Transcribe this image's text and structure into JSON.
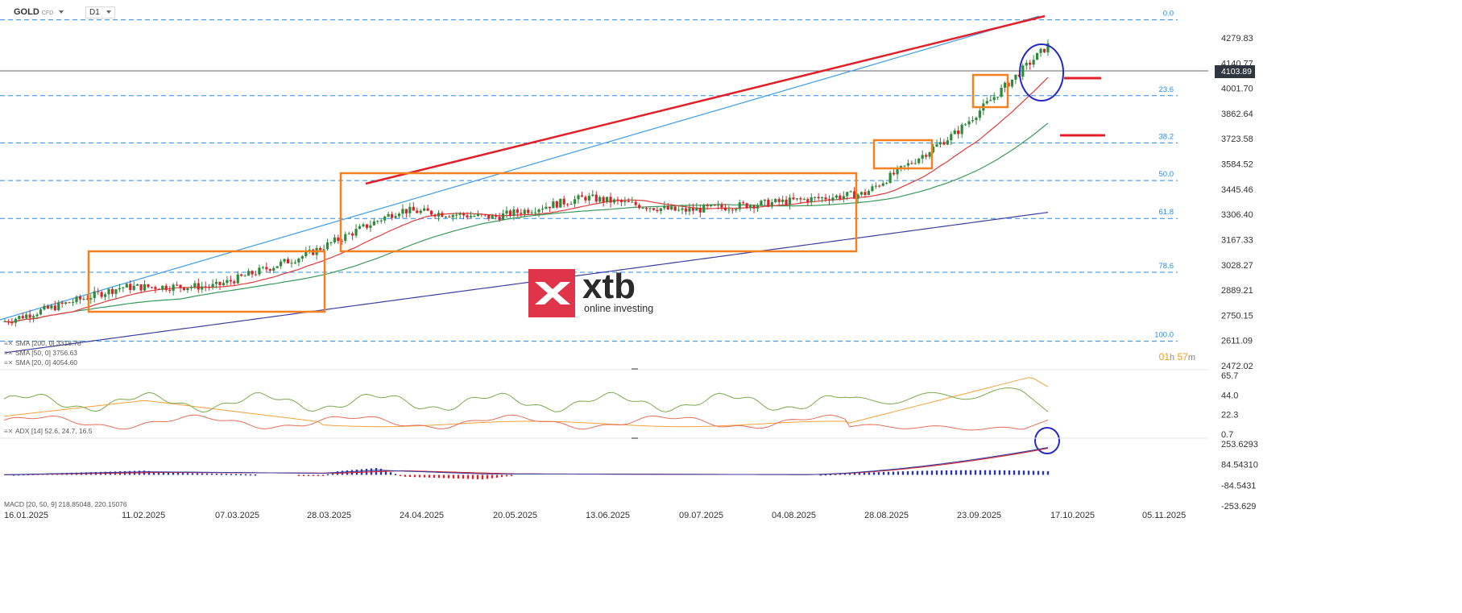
{
  "header": {
    "symbol": "GOLD",
    "type": "CFD",
    "timeframe": "D1"
  },
  "price_badge": "4103.89",
  "timer": {
    "hours": "01",
    "h_unit": "h",
    "minutes": "57",
    "m_unit": "m"
  },
  "logo": {
    "name": "xtb",
    "tagline": "online investing"
  },
  "indicators": {
    "sma200": "SMA [200, 0] 3318.78",
    "sma50": "SMA [50, 0] 3756.63",
    "sma20": "SMA [20, 0] 4054.60",
    "adx": "ADX [14] 52.6, 24.7, 16.5",
    "macd": "MACD [20, 50, 9] 218.85048, 220.15076"
  },
  "colors": {
    "fib": "#2a8ce8",
    "orange": "#f4801f",
    "red": "#e0202a",
    "trend_blue": "#3d9ce8",
    "sma20": "#e03b3b",
    "sma50": "#3a9a5a",
    "sma200": "#3d3f9e",
    "bull": "#2e8b3a",
    "bear": "#d7242c",
    "circle": "#2727c8"
  },
  "chart_data": [
    {
      "type": "candlestick",
      "symbol": "GOLD",
      "timeframe": "D1",
      "x_ticks": [
        "16.01.2025",
        "11.02.2025",
        "07.03.2025",
        "28.03.2025",
        "24.04.2025",
        "20.05.2025",
        "13.06.2025",
        "09.07.2025",
        "04.08.2025",
        "28.08.2025",
        "23.09.2025",
        "17.10.2025",
        "05.11.2025"
      ],
      "y_ticks": [
        "4279.83",
        "4140.77",
        "4001.70",
        "3862.64",
        "3723.58",
        "3584.52",
        "3445.46",
        "3306.40",
        "3167.33",
        "3028.27",
        "2889.21",
        "2750.15",
        "2611.09",
        "2472.02"
      ],
      "current_price": 4103.89,
      "fib_levels": [
        {
          "label": "0.0",
          "price": 4379
        },
        {
          "label": "23.6",
          "price": 3961
        },
        {
          "label": "38.2",
          "price": 3701
        },
        {
          "label": "50.0",
          "price": 3493
        },
        {
          "label": "61.8",
          "price": 3284
        },
        {
          "label": "78.6",
          "price": 2987
        },
        {
          "label": "100.0",
          "price": 2607
        }
      ],
      "close_path": [
        [
          "16.01.2025",
          2715
        ],
        [
          "11.02.2025",
          2905
        ],
        [
          "07.03.2025",
          2910
        ],
        [
          "28.03.2025",
          3085
        ],
        [
          "24.04.2025",
          3330
        ],
        [
          "20.05.2025",
          3290
        ],
        [
          "13.06.2025",
          3400
        ],
        [
          "09.07.2025",
          3325
        ],
        [
          "04.08.2025",
          3370
        ],
        [
          "28.08.2025",
          3420
        ],
        [
          "23.09.2025",
          3760
        ],
        [
          "17.10.2025",
          4250
        ],
        [
          "20.10.2025",
          4103.89
        ]
      ],
      "series": [
        {
          "name": "SMA [200, 0]",
          "last": 3318.78
        },
        {
          "name": "SMA [50, 0]",
          "last": 3756.63
        },
        {
          "name": "SMA [20, 0]",
          "last": 4054.6
        }
      ]
    },
    {
      "type": "line",
      "name": "ADX [14]",
      "values_last": [
        52.6,
        24.7,
        16.5
      ],
      "y_ticks": [
        "65.7",
        "44.0",
        "22.3",
        "0.7"
      ]
    },
    {
      "type": "line",
      "name": "MACD [20, 50, 9]",
      "values_last": [
        218.85048,
        220.15076
      ],
      "y_ticks": [
        "253.6293",
        "84.54310",
        "-84.5431",
        "-253.629"
      ]
    }
  ]
}
